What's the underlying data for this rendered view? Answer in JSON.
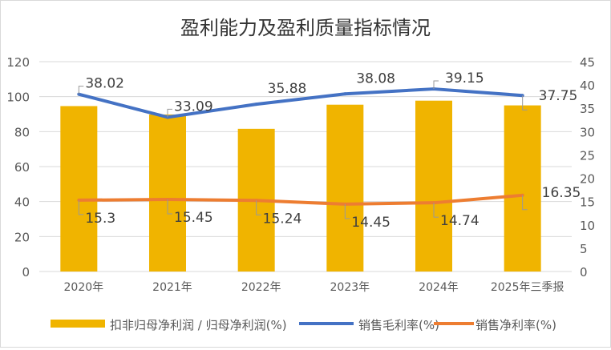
{
  "chart_data": {
    "type": "bar",
    "title": "盈利能力及盈利质量指标情况",
    "categories": [
      "2020年",
      "2021年",
      "2022年",
      "2023年",
      "2024年",
      "2025年三季报"
    ],
    "ylim_left": [
      0,
      120
    ],
    "yticks_left": [
      "0",
      "20",
      "40",
      "60",
      "80",
      "100",
      "120"
    ],
    "ylim_right": [
      0,
      45
    ],
    "yticks_right": [
      "0",
      "5",
      "10",
      "15",
      "20",
      "25",
      "30",
      "35",
      "40",
      "45"
    ],
    "grid": true,
    "legend_position": "bottom",
    "series": [
      {
        "name": "扣非归母净利润 / 归母净利润(%)",
        "type": "bar",
        "axis": "left",
        "color": "#f0b400",
        "values": [
          94.6,
          89.8,
          81.6,
          95.4,
          97.7,
          95.0
        ]
      },
      {
        "name": "销售毛利率(%)",
        "type": "line",
        "axis": "right",
        "color": "#4472c4",
        "values": [
          38.02,
          33.09,
          35.88,
          38.08,
          39.15,
          37.75
        ],
        "labels": [
          "38.02",
          "33.09",
          "35.88",
          "38.08",
          "39.15",
          "37.75"
        ]
      },
      {
        "name": "销售净利率(%)",
        "type": "line",
        "axis": "right",
        "color": "#ed7d31",
        "values": [
          15.3,
          15.45,
          15.24,
          14.45,
          14.74,
          16.35
        ],
        "labels": [
          "15.3",
          "15.45",
          "15.24",
          "14.45",
          "14.74",
          "16.35"
        ]
      }
    ]
  }
}
